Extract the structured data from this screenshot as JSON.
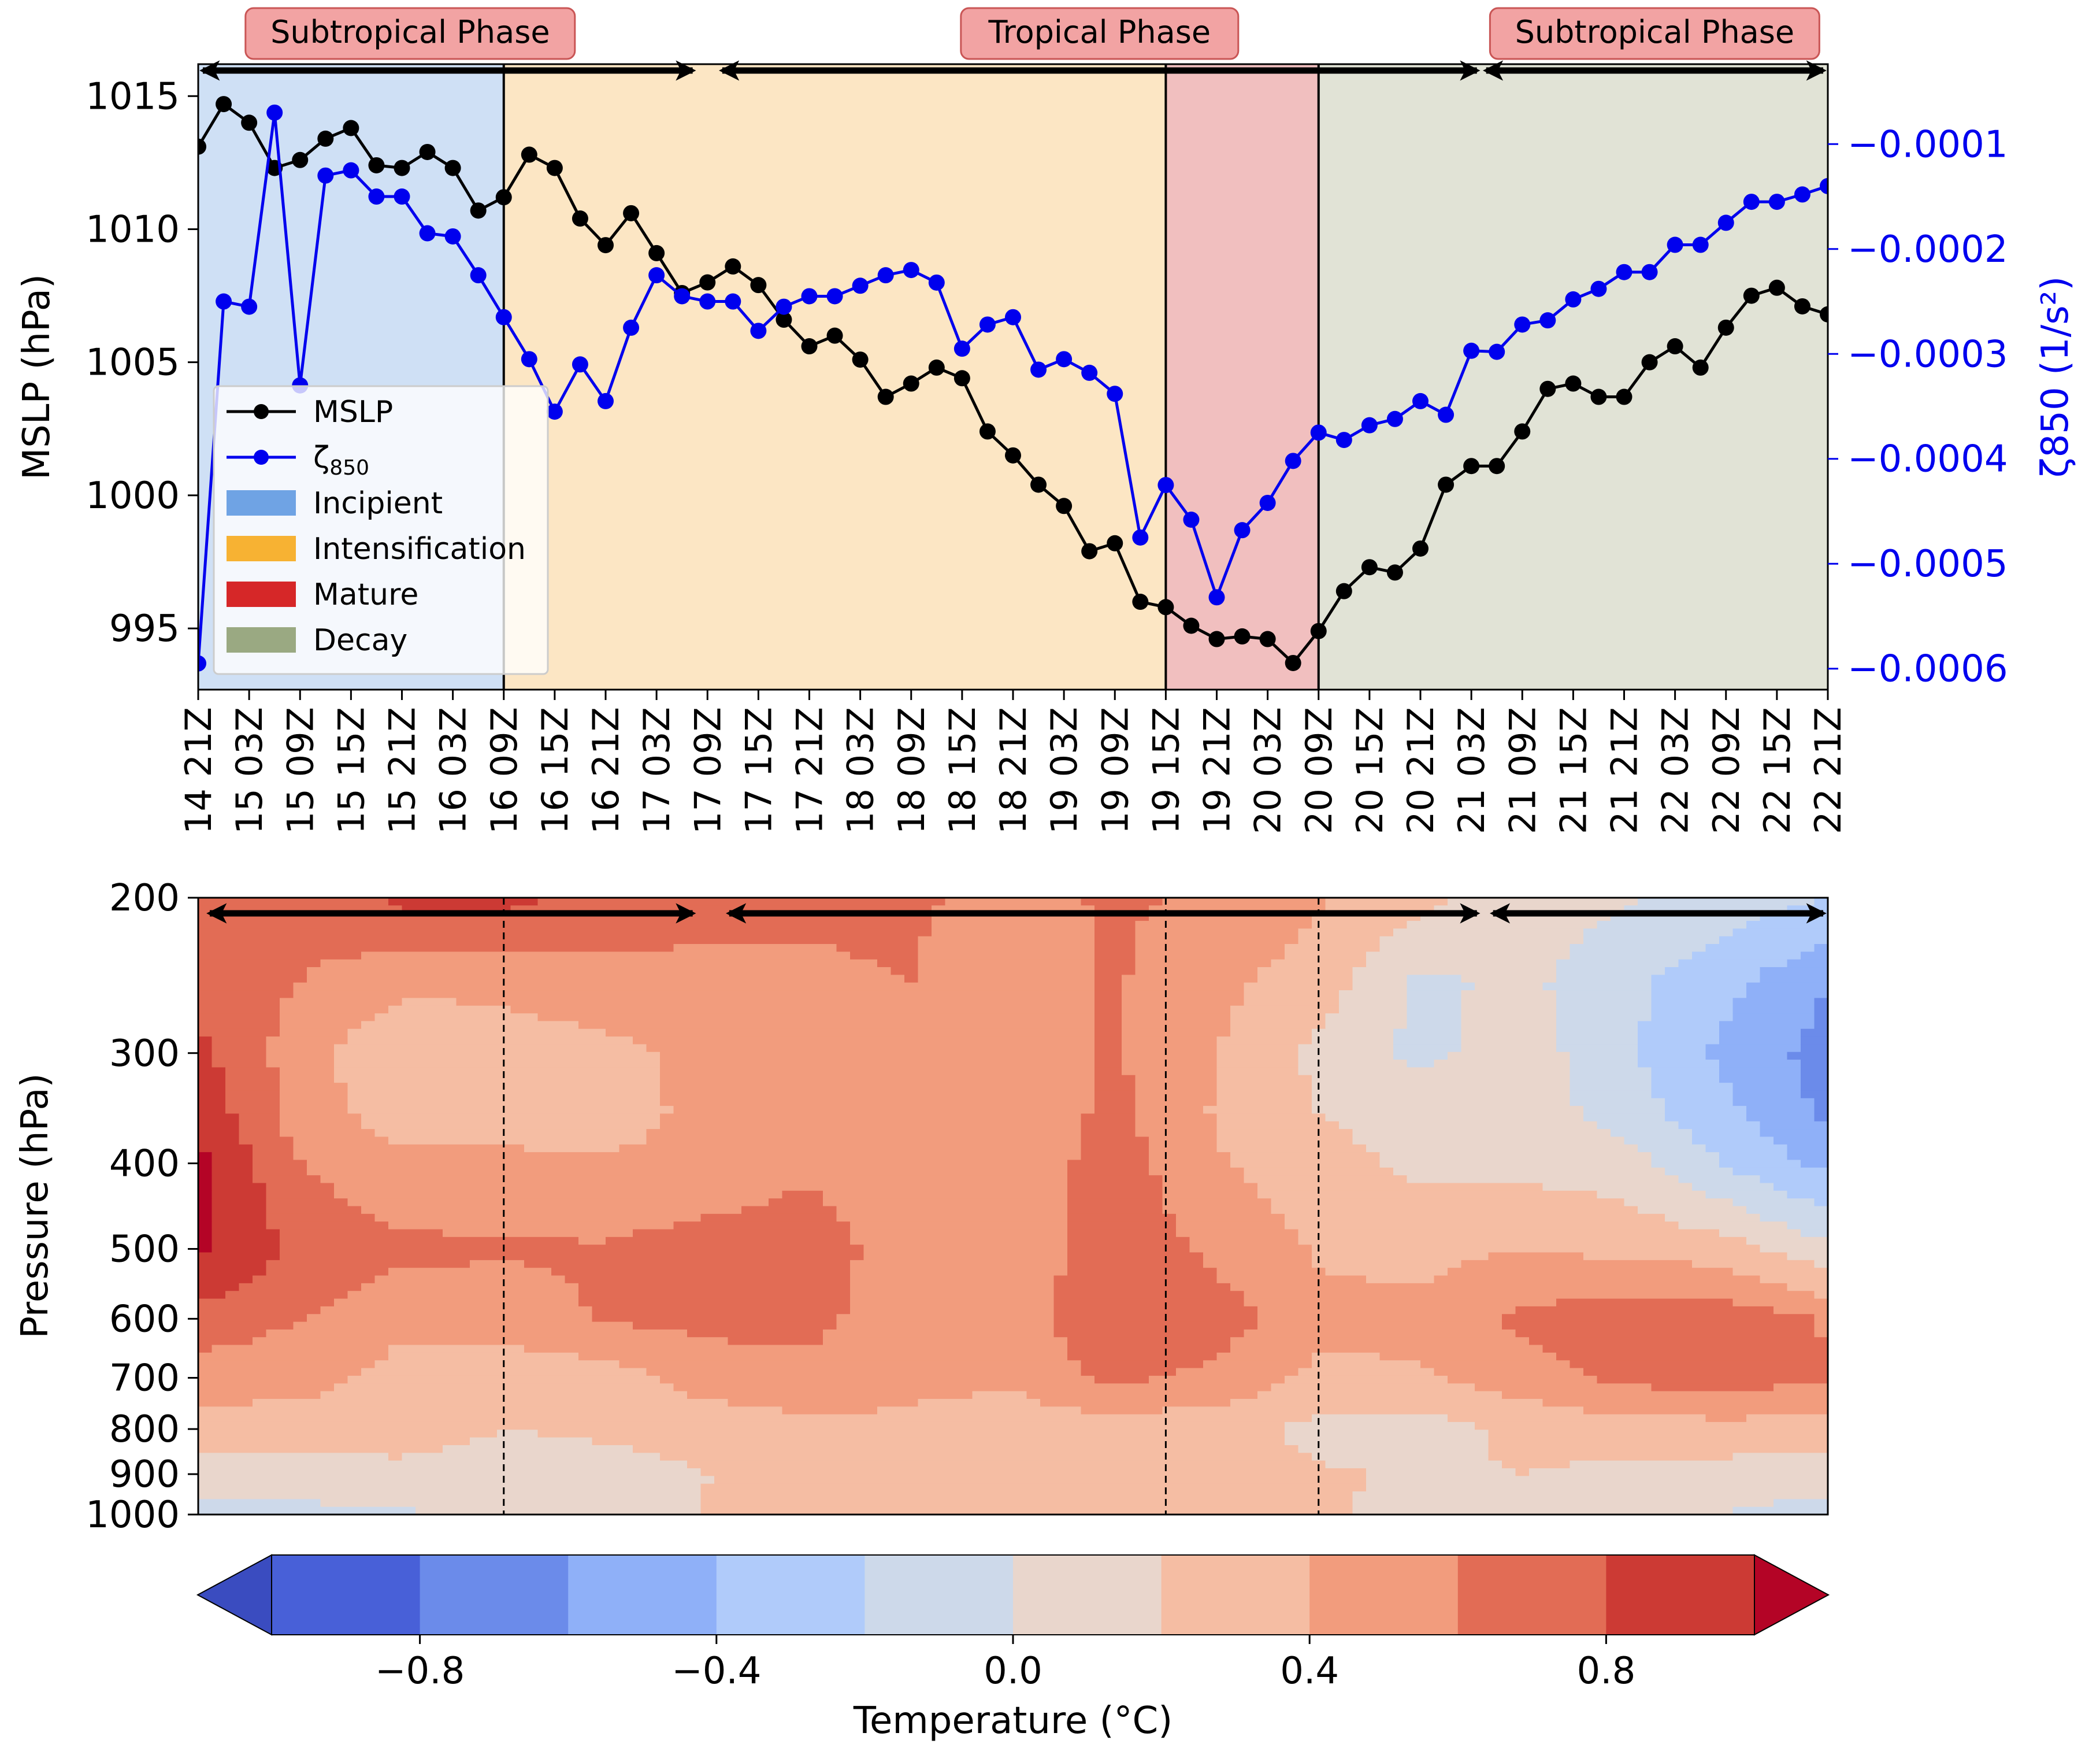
{
  "time_labels": [
    "14 21Z",
    "15 03Z",
    "15 09Z",
    "15 15Z",
    "15 21Z",
    "16 03Z",
    "16 09Z",
    "16 15Z",
    "16 21Z",
    "17 03Z",
    "17 09Z",
    "17 15Z",
    "17 21Z",
    "18 03Z",
    "18 09Z",
    "18 15Z",
    "18 21Z",
    "19 03Z",
    "19 09Z",
    "19 15Z",
    "19 21Z",
    "20 03Z",
    "20 09Z",
    "20 15Z",
    "20 21Z",
    "21 03Z",
    "21 09Z",
    "21 15Z",
    "21 21Z",
    "22 03Z",
    "22 09Z",
    "22 15Z",
    "22 21Z"
  ],
  "phases": [
    {
      "label": "Subtropical Phase",
      "start": 0,
      "end": 9.8
    },
    {
      "label": "Tropical Phase",
      "start": 10.2,
      "end": 25.2
    },
    {
      "label": "Subtropical Phase",
      "start": 25.2,
      "end": 32
    }
  ],
  "stages": [
    {
      "name": "Incipient",
      "start": 0,
      "end": 6,
      "fill": "#cfe0f5",
      "legend_color": "#6fa3e4"
    },
    {
      "name": "Intensification",
      "start": 6,
      "end": 19,
      "fill": "#fce6c4",
      "legend_color": "#f7b233"
    },
    {
      "name": "Mature",
      "start": 19,
      "end": 22,
      "fill": "#f1bfbf",
      "legend_color": "#d62728"
    },
    {
      "name": "Decay",
      "start": 22,
      "end": 32,
      "fill": "#e1e3d6",
      "legend_color": "#9aa982"
    }
  ],
  "chart_data": [
    {
      "type": "line",
      "x": [
        0,
        0.5,
        1,
        1.5,
        2,
        2.5,
        3,
        3.5,
        4,
        4.5,
        5,
        5.5,
        6,
        6.5,
        7,
        7.5,
        8,
        8.5,
        9,
        9.5,
        10,
        10.5,
        11,
        11.5,
        12,
        12.5,
        13,
        13.5,
        14,
        14.5,
        15,
        15.5,
        16,
        16.5,
        17,
        17.5,
        18,
        18.5,
        19,
        19.5,
        20,
        20.5,
        21,
        21.5,
        22,
        22.5,
        23,
        23.5,
        24,
        24.5,
        25,
        25.5,
        26,
        26.5,
        27,
        27.5,
        28,
        28.5,
        29,
        29.5,
        30,
        30.5,
        31,
        31.5,
        32
      ],
      "ylabel": "MSLP (hPa)",
      "ylabel2": "ζ850 (1/s²)",
      "ylim": [
        992.7,
        1016.2
      ],
      "y2lim": [
        -0.00062,
        -2.38e-05
      ],
      "yticks": [
        995,
        1000,
        1005,
        1010,
        1015
      ],
      "y2ticks": [
        "−0.0006",
        "−0.0005",
        "−0.0004",
        "−0.0003",
        "−0.0002",
        "−0.0001"
      ],
      "y2tick_values": [
        -0.0006,
        -0.0005,
        -0.0004,
        -0.0003,
        -0.0002,
        -0.0001
      ],
      "legend_loc": "lower-left",
      "series": [
        {
          "name": "MSLP",
          "axis": "left",
          "color": "#000000",
          "values": [
            1013.1,
            1014.7,
            1014,
            1012.3,
            1012.6,
            1013.4,
            1013.8,
            1012.4,
            1012.3,
            1012.9,
            1012.3,
            1010.7,
            1011.2,
            1012.8,
            1012.3,
            1010.4,
            1009.4,
            1010.6,
            1009.1,
            1007.6,
            1008,
            1008.6,
            1007.9,
            1006.6,
            1005.6,
            1006,
            1005.1,
            1003.7,
            1004.2,
            1004.8,
            1004.4,
            1002.4,
            1001.5,
            1000.4,
            999.6,
            997.9,
            998.2,
            996,
            995.8,
            995.1,
            994.6,
            994.7,
            994.6,
            993.7,
            994.9,
            996.4,
            997.3,
            997.1,
            998,
            1000.4,
            1001.1,
            1001.1,
            1002.4,
            1004,
            1004.2,
            1003.7,
            1003.7,
            1005,
            1005.6,
            1004.8,
            1006.3,
            1007.5,
            1007.8,
            1007.1,
            1006.8
          ]
        },
        {
          "name": "ζ850",
          "axis": "right",
          "color": "#0000ee",
          "values": [
            -0.000595,
            -0.00025,
            -0.000255,
            -7e-05,
            -0.00033,
            -0.00013,
            -0.000125,
            -0.00015,
            -0.00015,
            -0.000185,
            -0.000188,
            -0.000225,
            -0.000265,
            -0.000305,
            -0.000355,
            -0.00031,
            -0.000345,
            -0.000275,
            -0.000225,
            -0.000245,
            -0.00025,
            -0.00025,
            -0.000278,
            -0.000255,
            -0.000245,
            -0.000245,
            -0.000235,
            -0.000225,
            -0.00022,
            -0.000232,
            -0.000295,
            -0.000272,
            -0.000265,
            -0.000315,
            -0.000305,
            -0.000318,
            -0.000338,
            -0.000475,
            -0.000425,
            -0.000458,
            -0.000532,
            -0.000468,
            -0.000442,
            -0.000402,
            -0.000375,
            -0.000382,
            -0.000368,
            -0.000362,
            -0.000345,
            -0.000358,
            -0.000297,
            -0.000298,
            -0.000272,
            -0.000268,
            -0.000248,
            -0.000238,
            -0.000222,
            -0.000222,
            -0.000196,
            -0.000196,
            -0.000175,
            -0.000155,
            -0.000155,
            -0.000148,
            -0.00014
          ]
        }
      ]
    },
    {
      "type": "heatmap",
      "ylabel": "Pressure (hPa)",
      "yticks": [
        200,
        300,
        400,
        500,
        600,
        700,
        800,
        900,
        1000
      ],
      "colorbar_label": "Temperature (°C)",
      "colorbar_ticks": [
        "−0.8",
        "−0.4",
        "0.0",
        "0.4",
        "0.8"
      ],
      "colorbar_tick_values": [
        -0.8,
        -0.4,
        0.0,
        0.4,
        0.8
      ],
      "levels": [
        -1.0,
        -0.8,
        -0.6,
        -0.4,
        -0.2,
        0.0,
        0.2,
        0.4,
        0.6,
        0.8,
        1.0
      ],
      "colors": [
        "#4860d8",
        "#6b8bea",
        "#8fb0f8",
        "#b0cbfa",
        "#cdd9ea",
        "#e9d6cc",
        "#f5bda3",
        "#f29c7d",
        "#e26c55",
        "#cc3a34"
      ],
      "under_color": "#3a4cc0",
      "over_color": "#b40426",
      "x": [
        0,
        2,
        4,
        6,
        8,
        10,
        12,
        14,
        16,
        18,
        20,
        22,
        24,
        26,
        28,
        30,
        32
      ],
      "pressure": [
        200,
        250,
        300,
        350,
        400,
        500,
        600,
        700,
        800,
        900,
        1000
      ],
      "values": [
        [
          0.75,
          0.65,
          0.85,
          0.85,
          0.75,
          0.65,
          0.62,
          0.62,
          0.55,
          0.62,
          0.58,
          0.42,
          0.25,
          0.1,
          0.02,
          -0.1,
          -0.2
        ],
        [
          0.7,
          0.6,
          0.45,
          0.45,
          0.5,
          0.55,
          0.58,
          0.6,
          0.5,
          0.62,
          0.45,
          0.3,
          -0.05,
          0.05,
          -0.15,
          -0.35,
          -0.6
        ],
        [
          0.85,
          0.5,
          0.2,
          0.3,
          0.35,
          0.45,
          0.58,
          0.45,
          0.5,
          0.62,
          0.4,
          0.15,
          -0.05,
          0.1,
          -0.15,
          -0.45,
          -0.68
        ],
        [
          0.95,
          0.5,
          0.3,
          0.3,
          0.32,
          0.45,
          0.55,
          0.44,
          0.45,
          0.65,
          0.38,
          0.2,
          0.1,
          0.12,
          -0.1,
          -0.35,
          -0.65
        ],
        [
          1.05,
          0.6,
          0.45,
          0.45,
          0.42,
          0.45,
          0.55,
          0.42,
          0.45,
          0.7,
          0.42,
          0.28,
          0.15,
          0.15,
          0.1,
          -0.22,
          -0.45
        ],
        [
          1.05,
          0.75,
          0.65,
          0.62,
          0.62,
          0.7,
          0.75,
          0.44,
          0.42,
          0.75,
          0.55,
          0.38,
          0.35,
          0.4,
          0.35,
          0.3,
          0.05
        ],
        [
          0.72,
          0.6,
          0.45,
          0.5,
          0.62,
          0.65,
          0.65,
          0.48,
          0.5,
          0.8,
          0.7,
          0.45,
          0.45,
          0.65,
          0.72,
          0.72,
          0.58
        ],
        [
          0.5,
          0.48,
          0.32,
          0.25,
          0.3,
          0.5,
          0.55,
          0.45,
          0.42,
          0.65,
          0.55,
          0.35,
          0.38,
          0.5,
          0.65,
          0.7,
          0.62
        ],
        [
          0.3,
          0.3,
          0.28,
          0.2,
          0.22,
          0.25,
          0.35,
          0.35,
          0.32,
          0.28,
          0.28,
          0.15,
          0.1,
          0.25,
          0.3,
          0.32,
          0.3
        ],
        [
          0.08,
          0.1,
          0.15,
          0.12,
          0.15,
          0.2,
          0.28,
          0.3,
          0.3,
          0.38,
          0.28,
          0.22,
          0.18,
          0.2,
          0.15,
          0.12,
          0.1
        ],
        [
          -0.08,
          -0.05,
          -0.02,
          0.02,
          0.1,
          0.2,
          0.22,
          0.22,
          0.25,
          0.22,
          0.25,
          0.22,
          0.15,
          0.12,
          0.05,
          0.0,
          -0.1
        ]
      ]
    }
  ]
}
